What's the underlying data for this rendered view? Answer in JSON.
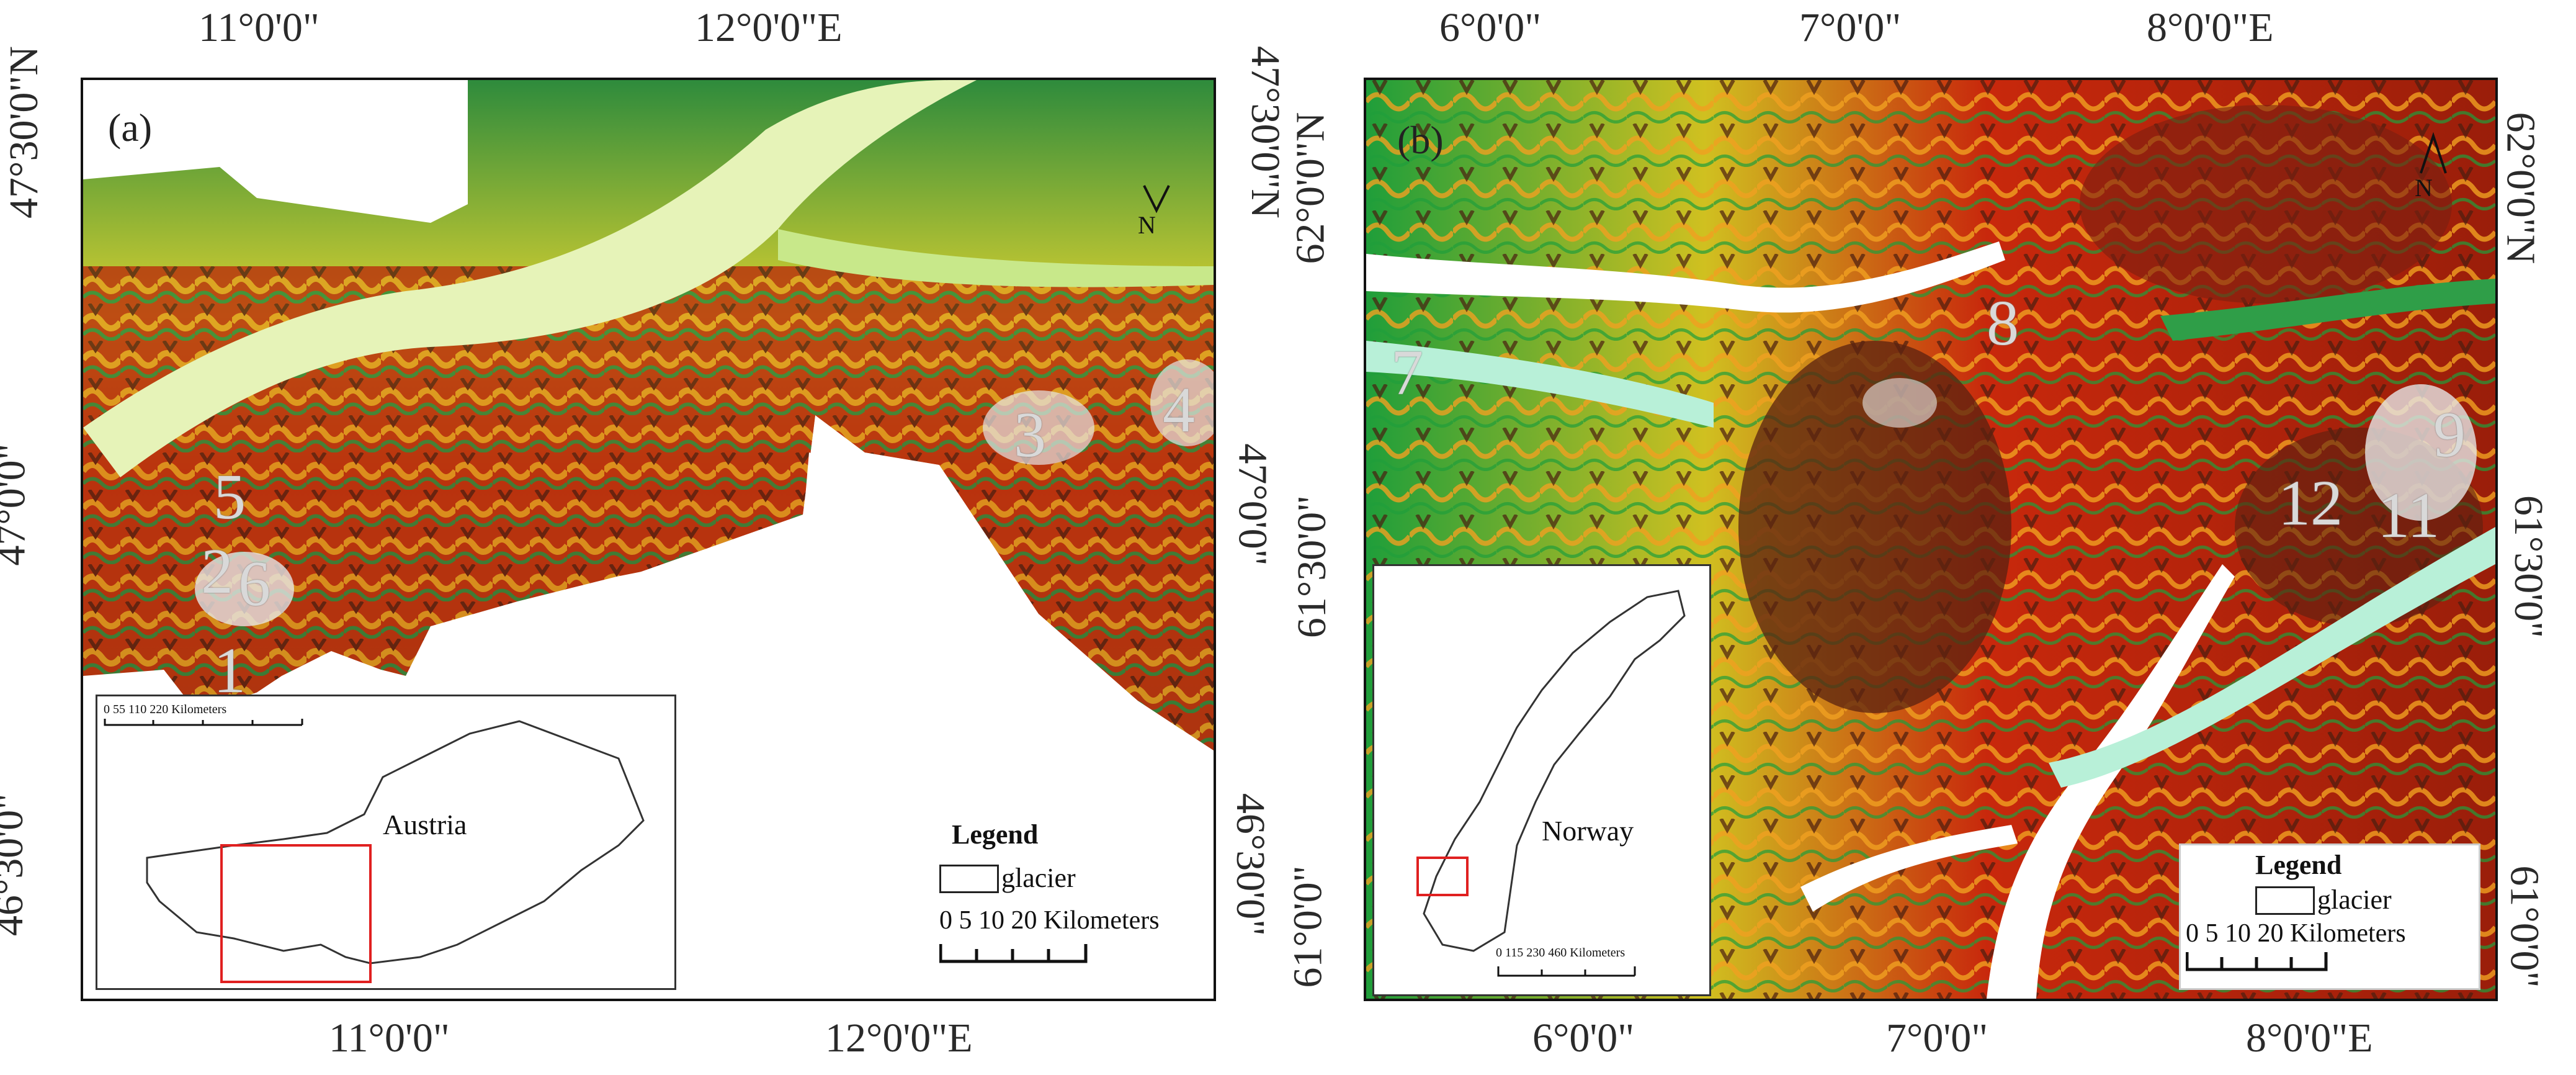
{
  "panel_a": {
    "label": "(a)",
    "top_ticks": [
      "11°0'0\"",
      "12°0'0\"E"
    ],
    "bottom_ticks": [
      "11°0'0\"",
      "12°0'0\"E"
    ],
    "left_ticks": [
      "47°30'0\"N",
      "47°0'0\"",
      "46°30'0\""
    ],
    "right_ticks": [
      "47°30'0\"N",
      "47°0'0\"",
      "46°30'0\""
    ],
    "sites": [
      "1",
      "2",
      "3",
      "4",
      "5",
      "6"
    ],
    "north": "N",
    "legend": {
      "title": "Legend",
      "item": "glacier",
      "scale": "0  5  10     20 Kilometers"
    },
    "inset": {
      "country": "Austria",
      "scale": "0     55    110              220 Kilometers"
    },
    "colors": {
      "low": "#2e8b3c",
      "mid": "#e0e040",
      "high": "#c41e0a",
      "peak": "#5a2a12",
      "ice": "#e8f0ea"
    }
  },
  "panel_b": {
    "label": "(b)",
    "top_ticks": [
      "6°0'0\"",
      "7°0'0\"",
      "8°0'0\"E"
    ],
    "bottom_ticks": [
      "6°0'0\"",
      "7°0'0\"",
      "8°0'0\"E"
    ],
    "left_ticks": [
      "62°0'0\"N",
      "61°30'0\"",
      "61°0'0\""
    ],
    "right_ticks": [
      "62°0'0\"N",
      "61°30'0\"",
      "61°0'0\""
    ],
    "sites": [
      "7",
      "8",
      "9",
      "11",
      "12"
    ],
    "north": "N",
    "legend": {
      "title": "Legend",
      "item": "glacier",
      "scale": "0  5  10     20 Kilometers"
    },
    "inset": {
      "country": "Norway",
      "scale": "0     115   230              460 Kilometers"
    },
    "colors": {
      "low": "#1f9e3a",
      "valley": "#b8f0d8",
      "mid": "#f0a020",
      "high": "#b8200c",
      "peak": "#4a1e10"
    }
  }
}
